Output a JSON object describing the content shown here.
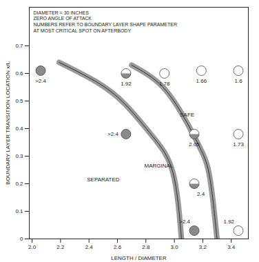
{
  "chart_data": {
    "type": "scatter",
    "xlabel": "LENGTH / DIAMETER",
    "ylabel": "BOUNDARY LAYER TRANSITION LOCATION x/L",
    "xlim": [
      1.98,
      3.52
    ],
    "ylim": [
      0,
      0.84
    ],
    "xticks": [
      {
        "value": 2,
        "label": "2.0"
      },
      2.2,
      2.4,
      2.6,
      2.8,
      {
        "value": 3,
        "label": "3.0"
      },
      3.2,
      3.4
    ],
    "yticks": [
      0,
      0.1,
      0.2,
      0.3,
      0.4,
      0.5,
      0.6,
      0.7
    ],
    "notes": [
      "DIAMETER = 30 INCHES",
      "ZERO ANGLE OF ATTACK",
      "NUMBERS REFER TO BOUNDARY LAYER SHAPE PARAMETER",
      "AT MOST CRITICAL SPOT ON AFTERBODY"
    ],
    "points": [
      {
        "x": 2.06,
        "y": 0.61,
        "label": ">2.4",
        "marker": "filled"
      },
      {
        "x": 2.66,
        "y": 0.6,
        "label": "1.92",
        "marker": "half"
      },
      {
        "x": 2.93,
        "y": 0.6,
        "label": "1.78",
        "marker": "open"
      },
      {
        "x": 3.19,
        "y": 0.61,
        "label": "1.66",
        "marker": "open"
      },
      {
        "x": 3.45,
        "y": 0.61,
        "label": "1.6",
        "marker": "open"
      },
      {
        "x": 2.66,
        "y": 0.38,
        "label": ">2.4",
        "marker": "filled"
      },
      {
        "x": 3.14,
        "y": 0.38,
        "label": "2.05",
        "marker": "half"
      },
      {
        "x": 3.45,
        "y": 0.38,
        "label": "1.73",
        "marker": "open"
      },
      {
        "x": 3.14,
        "y": 0.2,
        "label": "2.4",
        "marker": "half"
      },
      {
        "x": 3.14,
        "y": 0.03,
        "label": ">2.4",
        "marker": "filled"
      },
      {
        "x": 3.45,
        "y": 0.03,
        "label": "1.92",
        "marker": "open"
      }
    ],
    "boundaries": [
      {
        "x": [
          2.19,
          2.45,
          2.65,
          2.85,
          2.99,
          3.05
        ],
        "y": [
          0.64,
          0.57,
          0.49,
          0.37,
          0.24,
          0
        ]
      },
      {
        "x": [
          2.7,
          2.92,
          3.09,
          3.19,
          3.25,
          3.3
        ],
        "y": [
          0.63,
          0.55,
          0.42,
          0.32,
          0.22,
          0
        ]
      }
    ],
    "annotations": [
      {
        "text": "SEPARATED",
        "x": 2.5,
        "y": 0.215
      },
      {
        "text": "MARGINAL",
        "x": 2.89,
        "y": 0.265
      },
      {
        "text": "SAFE",
        "x": 3.09,
        "y": 0.45
      }
    ]
  }
}
